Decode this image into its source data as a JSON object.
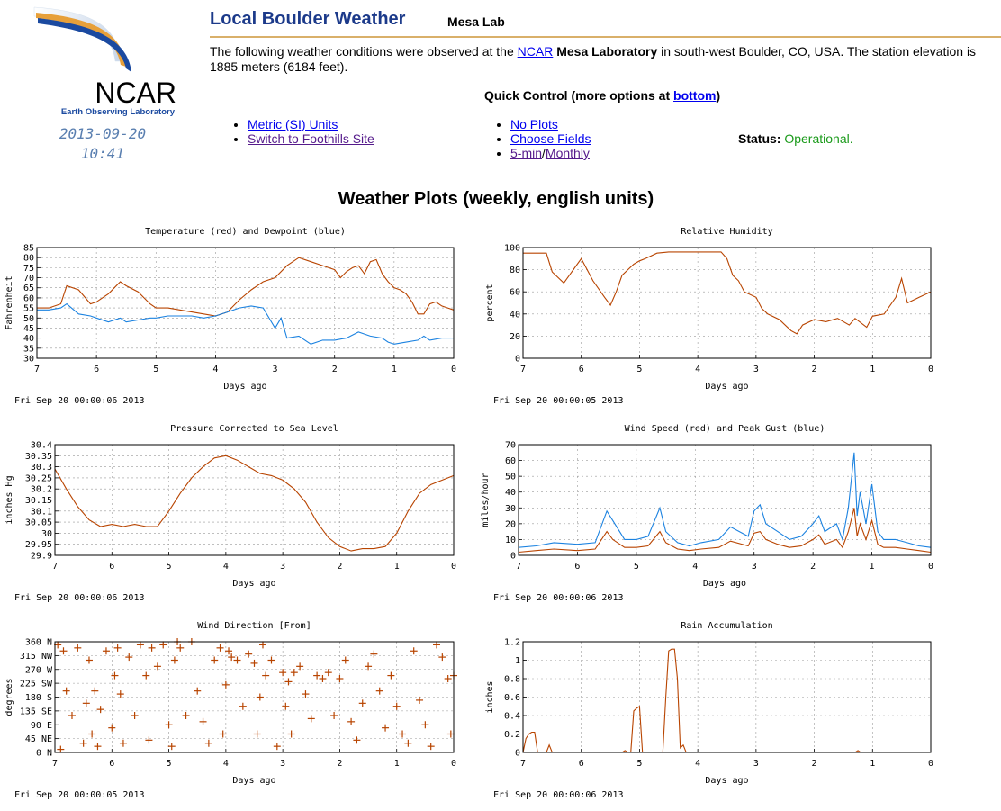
{
  "header": {
    "title": "Local Boulder Weather",
    "site": "Mesa Lab",
    "logo_text": "NCAR",
    "logo_subtext": "Earth Observing Laboratory",
    "date": "2013-09-20",
    "time": "10:41"
  },
  "description": {
    "prefix": "The following weather conditions were observed at the ",
    "link": "NCAR",
    "bold": "Mesa Laboratory",
    "suffix": " in south-west Boulder, CO, USA. The station elevation is 1885 meters (6184 feet)."
  },
  "quick_control": {
    "label": "Quick Control (more options at ",
    "link": "bottom",
    "close": ")",
    "left_items": [
      "Metric (SI) Units",
      "Switch to Foothills Site"
    ],
    "right_items": [
      "No Plots",
      "Choose Fields"
    ],
    "interval_5min": "5-min",
    "interval_sep": "/",
    "interval_monthly": "Monthly"
  },
  "status": {
    "label": "Status:",
    "value": "Operational."
  },
  "plots_heading": "Weather Plots (weekly, english units)",
  "colors": {
    "red": "#b84400",
    "blue": "#1b82e0",
    "green": "#1a9a1a",
    "title_blue": "#1c3a8a"
  },
  "chart_data": [
    {
      "id": "temperature",
      "type": "line",
      "title": "Temperature (red) and Dewpoint (blue)",
      "xlabel": "Days ago",
      "ylabel": "Fahrenheit",
      "timestamp": "Fri Sep 20 00:00:06 2013",
      "x_ticks": [
        "7",
        "6",
        "5",
        "4",
        "3",
        "2",
        "1",
        "0"
      ],
      "y_ticks": [
        "30",
        "35",
        "40",
        "45",
        "50",
        "55",
        "60",
        "65",
        "70",
        "75",
        "80",
        "85"
      ],
      "xlim": [
        7,
        0
      ],
      "ylim": [
        30,
        85
      ],
      "grid": true,
      "series": [
        {
          "color": "#b84400",
          "x": [
            7,
            6.8,
            6.6,
            6.5,
            6.3,
            6.1,
            6.0,
            5.8,
            5.6,
            5.5,
            5.3,
            5.1,
            5.0,
            4.8,
            4.6,
            4.4,
            4.2,
            4.0,
            3.8,
            3.6,
            3.4,
            3.2,
            3.0,
            2.8,
            2.6,
            2.4,
            2.2,
            2.0,
            1.9,
            1.8,
            1.7,
            1.6,
            1.5,
            1.4,
            1.3,
            1.2,
            1.1,
            1.0,
            0.9,
            0.8,
            0.7,
            0.6,
            0.5,
            0.4,
            0.3,
            0.2,
            0.1,
            0.0
          ],
          "values": [
            55,
            55,
            57,
            66,
            64,
            57,
            58,
            62,
            68,
            66,
            63,
            57,
            55,
            55,
            54,
            53,
            52,
            51,
            53,
            59,
            64,
            68,
            70,
            76,
            80,
            78,
            76,
            74,
            70,
            73,
            75,
            76,
            72,
            78,
            79,
            72,
            68,
            65,
            64,
            62,
            58,
            52,
            52,
            57,
            58,
            56,
            55,
            54
          ]
        },
        {
          "color": "#1b82e0",
          "x": [
            7,
            6.8,
            6.6,
            6.5,
            6.3,
            6.1,
            6.0,
            5.8,
            5.6,
            5.5,
            5.3,
            5.1,
            5.0,
            4.8,
            4.6,
            4.4,
            4.2,
            4.0,
            3.8,
            3.6,
            3.4,
            3.2,
            3.0,
            2.9,
            2.8,
            2.6,
            2.4,
            2.2,
            2.0,
            1.8,
            1.6,
            1.4,
            1.2,
            1.1,
            1.0,
            0.8,
            0.6,
            0.5,
            0.4,
            0.2,
            0.0
          ],
          "values": [
            54,
            54,
            55,
            57,
            52,
            51,
            50,
            48,
            50,
            48,
            49,
            50,
            50,
            51,
            51,
            51,
            50,
            51,
            53,
            55,
            56,
            55,
            45,
            50,
            40,
            41,
            37,
            39,
            39,
            40,
            43,
            41,
            40,
            38,
            37,
            38,
            39,
            41,
            39,
            40,
            40
          ]
        }
      ]
    },
    {
      "id": "humidity",
      "type": "line",
      "title": "Relative Humidity",
      "xlabel": "Days ago",
      "ylabel": "percent",
      "timestamp": "Fri Sep 20 00:00:05 2013",
      "x_ticks": [
        "7",
        "6",
        "5",
        "4",
        "3",
        "2",
        "1",
        "0"
      ],
      "y_ticks": [
        "0",
        "20",
        "40",
        "60",
        "80",
        "100"
      ],
      "xlim": [
        7,
        0
      ],
      "ylim": [
        0,
        100
      ],
      "grid": true,
      "series": [
        {
          "color": "#b84400",
          "x": [
            7,
            6.6,
            6.5,
            6.3,
            6.0,
            5.9,
            5.8,
            5.6,
            5.5,
            5.4,
            5.3,
            5.2,
            5.1,
            5.0,
            4.9,
            4.7,
            4.5,
            4.2,
            4.0,
            3.8,
            3.6,
            3.5,
            3.4,
            3.3,
            3.2,
            3.0,
            2.9,
            2.8,
            2.6,
            2.4,
            2.3,
            2.2,
            2.0,
            1.8,
            1.6,
            1.4,
            1.3,
            1.1,
            1.0,
            0.8,
            0.6,
            0.5,
            0.4,
            0.2,
            0.0
          ],
          "values": [
            95,
            95,
            78,
            68,
            90,
            80,
            70,
            55,
            48,
            60,
            75,
            80,
            85,
            88,
            90,
            95,
            96,
            96,
            96,
            96,
            96,
            90,
            75,
            70,
            60,
            55,
            45,
            40,
            35,
            25,
            22,
            30,
            35,
            33,
            36,
            30,
            36,
            28,
            38,
            40,
            55,
            72,
            50,
            55,
            60
          ]
        }
      ]
    },
    {
      "id": "pressure",
      "type": "line",
      "title": "Pressure Corrected to Sea Level",
      "xlabel": "Days ago",
      "ylabel": "inches Hg",
      "timestamp": "Fri Sep 20 00:00:06 2013",
      "x_ticks": [
        "7",
        "6",
        "5",
        "4",
        "3",
        "2",
        "1",
        "0"
      ],
      "y_ticks": [
        "29.9",
        "29.95",
        "30",
        "30.05",
        "30.1",
        "30.15",
        "30.2",
        "30.25",
        "30.3",
        "30.35",
        "30.4"
      ],
      "xlim": [
        7,
        0
      ],
      "ylim": [
        29.9,
        30.4
      ],
      "grid": true,
      "series": [
        {
          "color": "#b84400",
          "x": [
            7,
            6.8,
            6.6,
            6.4,
            6.2,
            6.0,
            5.8,
            5.6,
            5.4,
            5.2,
            5.0,
            4.8,
            4.6,
            4.4,
            4.2,
            4.0,
            3.8,
            3.6,
            3.4,
            3.2,
            3.0,
            2.8,
            2.6,
            2.4,
            2.2,
            2.0,
            1.8,
            1.6,
            1.4,
            1.2,
            1.0,
            0.8,
            0.6,
            0.4,
            0.2,
            0.0
          ],
          "values": [
            30.29,
            30.2,
            30.12,
            30.06,
            30.03,
            30.04,
            30.03,
            30.04,
            30.03,
            30.03,
            30.1,
            30.18,
            30.25,
            30.3,
            30.34,
            30.35,
            30.33,
            30.3,
            30.27,
            30.26,
            30.24,
            30.2,
            30.14,
            30.05,
            29.98,
            29.94,
            29.92,
            29.93,
            29.93,
            29.94,
            30.0,
            30.1,
            30.18,
            30.22,
            30.24,
            30.26
          ]
        }
      ]
    },
    {
      "id": "wind",
      "type": "line",
      "title": "Wind Speed (red) and Peak Gust (blue)",
      "xlabel": "Days ago",
      "ylabel": "miles/hour",
      "timestamp": "Fri Sep 20 00:00:06 2013",
      "x_ticks": [
        "7",
        "6",
        "5",
        "4",
        "3",
        "2",
        "1",
        "0"
      ],
      "y_ticks": [
        "0",
        "10",
        "20",
        "30",
        "40",
        "50",
        "60",
        "70"
      ],
      "xlim": [
        7,
        0
      ],
      "ylim": [
        0,
        70
      ],
      "grid": true,
      "series": [
        {
          "color": "#1b82e0",
          "x": [
            7,
            6.7,
            6.4,
            6.0,
            5.7,
            5.5,
            5.4,
            5.2,
            5.0,
            4.8,
            4.6,
            4.5,
            4.3,
            4.1,
            3.9,
            3.6,
            3.4,
            3.1,
            3.0,
            2.9,
            2.8,
            2.6,
            2.4,
            2.2,
            2.0,
            1.9,
            1.8,
            1.6,
            1.5,
            1.4,
            1.3,
            1.25,
            1.2,
            1.1,
            1.0,
            0.9,
            0.8,
            0.6,
            0.4,
            0.2,
            0.0
          ],
          "values": [
            5,
            6,
            8,
            7,
            8,
            28,
            22,
            10,
            10,
            12,
            30,
            15,
            8,
            6,
            8,
            10,
            18,
            12,
            28,
            32,
            20,
            15,
            10,
            12,
            20,
            25,
            15,
            20,
            10,
            30,
            65,
            25,
            40,
            20,
            45,
            15,
            10,
            10,
            8,
            6,
            5
          ]
        },
        {
          "color": "#b84400",
          "x": [
            7,
            6.7,
            6.4,
            6.0,
            5.7,
            5.5,
            5.4,
            5.2,
            5.0,
            4.8,
            4.6,
            4.5,
            4.3,
            4.1,
            3.9,
            3.6,
            3.4,
            3.1,
            3.0,
            2.9,
            2.8,
            2.6,
            2.4,
            2.2,
            2.0,
            1.9,
            1.8,
            1.6,
            1.5,
            1.4,
            1.3,
            1.25,
            1.2,
            1.1,
            1.0,
            0.9,
            0.8,
            0.6,
            0.4,
            0.2,
            0.0
          ],
          "values": [
            2,
            3,
            4,
            3,
            4,
            15,
            10,
            5,
            5,
            6,
            15,
            8,
            4,
            3,
            4,
            5,
            9,
            6,
            14,
            15,
            10,
            7,
            5,
            6,
            10,
            13,
            7,
            10,
            5,
            15,
            30,
            12,
            20,
            10,
            22,
            7,
            5,
            5,
            4,
            3,
            2
          ]
        }
      ]
    },
    {
      "id": "direction",
      "type": "scatter",
      "title": "Wind Direction [From]",
      "xlabel": "Days ago",
      "ylabel": "degrees",
      "timestamp": "Fri Sep 20 00:00:05 2013",
      "x_ticks": [
        "7",
        "6",
        "5",
        "4",
        "3",
        "2",
        "1",
        "0"
      ],
      "y_ticks": [
        "0 N",
        "45 NE",
        "90 E",
        "135 SE",
        "180 S",
        "225 SW",
        "270 W",
        "315 NW",
        "360 N"
      ],
      "xlim": [
        7,
        0
      ],
      "ylim": [
        0,
        360
      ],
      "grid": true,
      "series": [
        {
          "color": "#b84400",
          "marker": "plus",
          "x": [
            6.95,
            6.9,
            6.85,
            6.8,
            6.7,
            6.6,
            6.5,
            6.45,
            6.4,
            6.35,
            6.3,
            6.25,
            6.2,
            6.1,
            6.0,
            5.95,
            5.9,
            5.85,
            5.8,
            5.7,
            5.6,
            5.5,
            5.4,
            5.35,
            5.3,
            5.2,
            5.1,
            5.0,
            4.95,
            4.9,
            4.85,
            4.8,
            4.7,
            4.6,
            4.5,
            4.4,
            4.3,
            4.2,
            4.1,
            4.05,
            4.0,
            3.95,
            3.9,
            3.8,
            3.7,
            3.6,
            3.5,
            3.45,
            3.4,
            3.35,
            3.3,
            3.2,
            3.1,
            3.0,
            2.95,
            2.9,
            2.85,
            2.8,
            2.7,
            2.6,
            2.5,
            2.4,
            2.3,
            2.2,
            2.1,
            2.0,
            1.9,
            1.8,
            1.7,
            1.6,
            1.5,
            1.4,
            1.3,
            1.2,
            1.1,
            1.0,
            0.9,
            0.8,
            0.7,
            0.6,
            0.5,
            0.4,
            0.3,
            0.2,
            0.1,
            0.05,
            0.0
          ],
          "values": [
            350,
            10,
            330,
            200,
            120,
            340,
            30,
            160,
            300,
            60,
            200,
            20,
            140,
            330,
            80,
            250,
            340,
            190,
            30,
            310,
            120,
            350,
            250,
            40,
            340,
            280,
            350,
            90,
            20,
            300,
            360,
            340,
            120,
            360,
            200,
            100,
            30,
            300,
            340,
            60,
            220,
            330,
            310,
            300,
            150,
            320,
            290,
            60,
            180,
            350,
            250,
            300,
            20,
            260,
            150,
            230,
            60,
            260,
            280,
            190,
            110,
            250,
            240,
            260,
            120,
            240,
            300,
            100,
            40,
            160,
            280,
            320,
            200,
            80,
            250,
            150,
            60,
            30,
            330,
            170,
            90,
            20,
            350,
            310,
            240,
            60,
            250
          ]
        }
      ]
    },
    {
      "id": "rain",
      "type": "line",
      "title": "Rain Accumulation",
      "xlabel": "Days ago",
      "ylabel": "inches",
      "timestamp": "Fri Sep 20 00:00:06 2013",
      "x_ticks": [
        "7",
        "6",
        "5",
        "4",
        "3",
        "2",
        "1",
        "0"
      ],
      "y_ticks": [
        "0",
        "0.2",
        "0.4",
        "0.6",
        "0.8",
        "1",
        "1.2"
      ],
      "xlim": [
        7,
        0
      ],
      "ylim": [
        0,
        1.2
      ],
      "grid": true,
      "series": [
        {
          "color": "#b84400",
          "x": [
            7,
            6.95,
            6.9,
            6.85,
            6.8,
            6.75,
            6.7,
            6.6,
            6.55,
            6.5,
            5.3,
            5.25,
            5.2,
            5.15,
            5.1,
            5.05,
            5.0,
            4.95,
            4.9,
            4.6,
            4.55,
            4.5,
            4.45,
            4.4,
            4.35,
            4.3,
            4.25,
            4.2,
            4.15,
            4.1,
            4.0,
            1.3,
            1.25,
            1.2,
            0.0
          ],
          "values": [
            0,
            0.15,
            0.2,
            0.22,
            0.22,
            0,
            0,
            0,
            0.08,
            0,
            0,
            0.02,
            0,
            0,
            0.45,
            0.48,
            0.5,
            0,
            0,
            0,
            0.6,
            1.1,
            1.12,
            1.12,
            0.8,
            0.05,
            0.08,
            0,
            0,
            0,
            0,
            0,
            0.02,
            0,
            0
          ]
        }
      ]
    }
  ]
}
